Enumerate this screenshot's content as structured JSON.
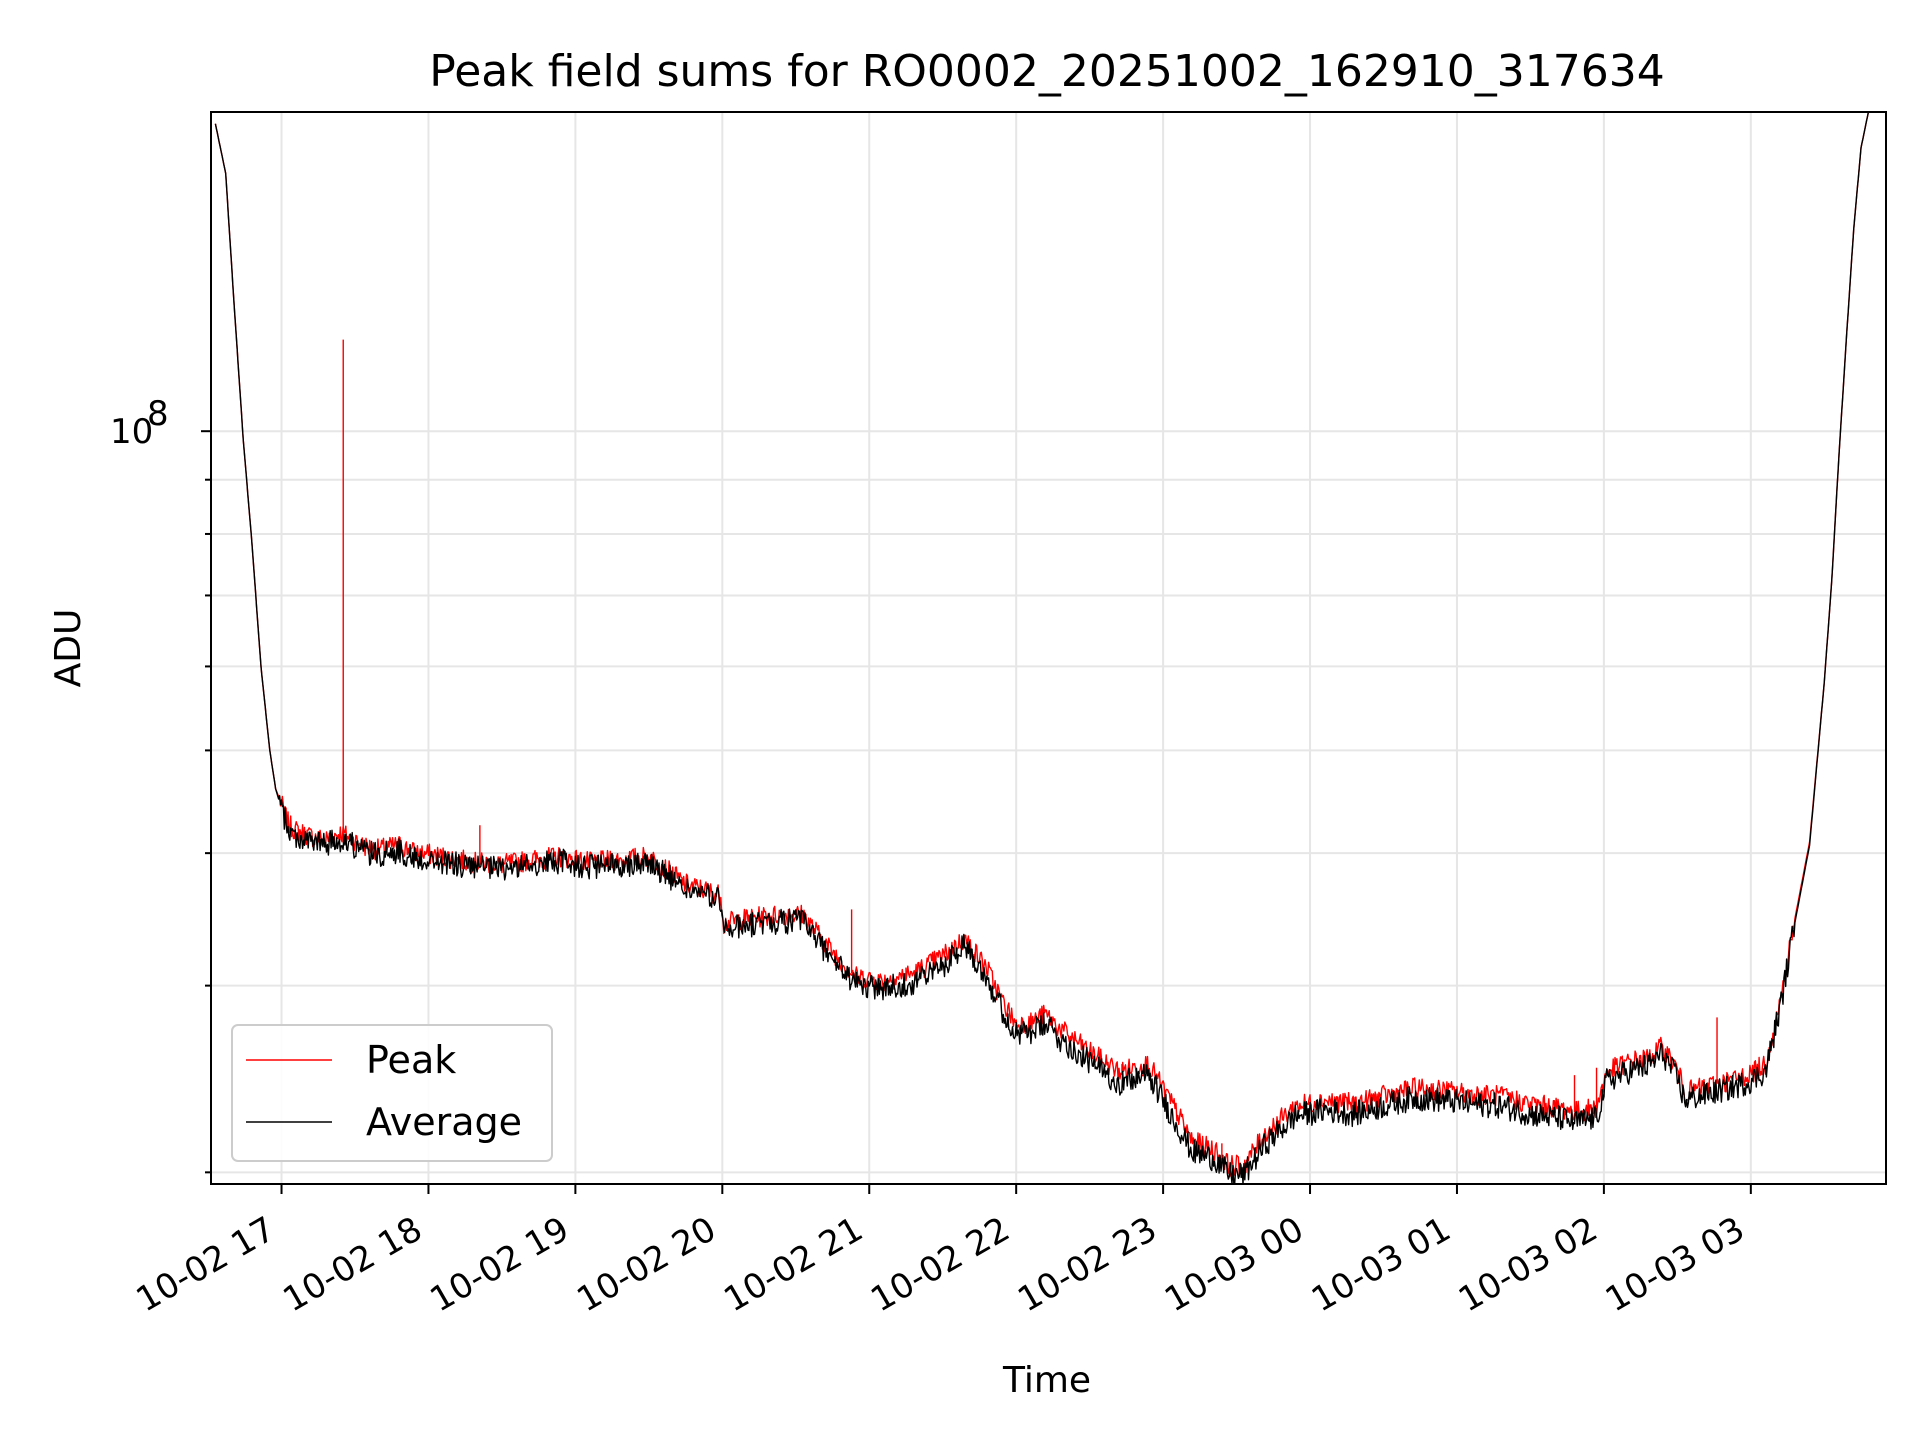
{
  "chart_data": {
    "type": "line",
    "title": "Peak field sums for RO0002_20251002_162910_317634",
    "xlabel": "Time",
    "ylabel": "ADU",
    "yscale": "log",
    "ylim": [
      19500000,
      200000000
    ],
    "y_major_tick_value": 100000000,
    "y_major_tick_label_base": "10",
    "y_major_tick_label_exp": "8",
    "y_minor_ticks": [
      20000000,
      30000000,
      40000000,
      50000000,
      60000000,
      70000000,
      80000000,
      90000000
    ],
    "xlim_hours": [
      16.52,
      27.92
    ],
    "x_ticks": [
      {
        "hour": 17,
        "label": "10-02 17"
      },
      {
        "hour": 18,
        "label": "10-02 18"
      },
      {
        "hour": 19,
        "label": "10-02 19"
      },
      {
        "hour": 20,
        "label": "10-02 20"
      },
      {
        "hour": 21,
        "label": "10-02 21"
      },
      {
        "hour": 22,
        "label": "10-02 22"
      },
      {
        "hour": 23,
        "label": "10-02 23"
      },
      {
        "hour": 24,
        "label": "10-03 00"
      },
      {
        "hour": 25,
        "label": "10-03 01"
      },
      {
        "hour": 26,
        "label": "10-03 02"
      },
      {
        "hour": 27,
        "label": "10-03 03"
      }
    ],
    "grid": true,
    "legend_position": "lower-left",
    "x_hours": [
      16.55,
      16.62,
      16.68,
      16.74,
      16.8,
      16.86,
      16.92,
      16.96,
      17.0,
      17.05,
      17.1,
      17.2,
      17.3,
      17.4,
      17.45,
      17.55,
      17.65,
      17.8,
      17.9,
      18.1,
      18.3,
      18.5,
      18.7,
      18.9,
      19.1,
      19.3,
      19.5,
      19.6,
      19.75,
      19.99,
      20.01,
      20.1,
      20.4,
      20.55,
      20.7,
      20.9,
      21.1,
      21.3,
      21.5,
      21.65,
      21.8,
      21.9,
      22.0,
      22.1,
      22.2,
      22.3,
      22.5,
      22.7,
      22.9,
      23.0,
      23.1,
      23.2,
      23.35,
      23.45,
      23.55,
      23.7,
      23.9,
      24.1,
      24.3,
      24.5,
      24.7,
      24.9,
      25.1,
      25.3,
      25.5,
      25.7,
      25.8,
      25.95,
      26.02,
      26.2,
      26.3,
      26.4,
      26.5,
      26.55,
      26.7,
      26.9,
      27.0,
      27.1,
      27.2,
      27.3,
      27.4,
      27.5,
      27.55,
      27.6,
      27.65,
      27.7,
      27.75,
      27.8,
      27.85,
      27.9
    ],
    "series": [
      {
        "name": "Peak",
        "color": "#ff0000",
        "values": [
          195000000,
          175000000,
          130000000,
          98000000,
          78000000,
          60000000,
          50000000,
          46000000,
          44500000,
          42500000,
          42000000,
          41500000,
          41200000,
          41800000,
          41500000,
          40700000,
          40300000,
          40700000,
          40100000,
          39700000,
          39200000,
          39000000,
          39400000,
          39700000,
          39200000,
          39400000,
          39700000,
          38800000,
          37400000,
          36500000,
          34300000,
          34600000,
          35000000,
          35000000,
          32900000,
          30600000,
          30300000,
          30800000,
          32000000,
          33200000,
          31200000,
          29100000,
          27600000,
          27700000,
          28200000,
          27300000,
          26000000,
          24900000,
          25300000,
          24000000,
          22700000,
          21400000,
          21000000,
          20300000,
          20300000,
          21800000,
          23100000,
          23400000,
          23200000,
          23600000,
          24000000,
          23900000,
          23700000,
          23600000,
          23200000,
          23000000,
          22800000,
          23000000,
          24900000,
          25500000,
          25600000,
          26300000,
          25000000,
          23800000,
          24100000,
          24500000,
          24800000,
          25300000,
          29000000,
          34700000,
          41000000,
          58000000,
          72000000,
          95000000,
          122000000,
          155000000,
          185000000,
          200000000,
          200000000,
          200000000
        ]
      },
      {
        "name": "Average",
        "color": "#000000",
        "values": [
          195000000,
          175000000,
          130000000,
          98000000,
          78000000,
          60000000,
          50000000,
          46000000,
          44000000,
          42000000,
          41400000,
          41000000,
          40800000,
          41200000,
          41000000,
          40200000,
          39800000,
          40200000,
          39600000,
          39200000,
          38800000,
          38600000,
          39000000,
          39300000,
          38800000,
          39000000,
          39300000,
          38300000,
          37000000,
          36100000,
          33800000,
          34100000,
          34500000,
          34500000,
          32400000,
          30100000,
          29800000,
          30200000,
          31300000,
          32900000,
          30600000,
          28500000,
          27000000,
          27100000,
          27600000,
          26700000,
          25400000,
          24300000,
          24700000,
          23400000,
          22100000,
          20900000,
          20600000,
          19900000,
          19900000,
          21300000,
          22600000,
          22900000,
          22700000,
          23100000,
          23500000,
          23400000,
          23200000,
          23100000,
          22700000,
          22500000,
          22300000,
          22500000,
          24400000,
          25000000,
          25200000,
          25900000,
          24500000,
          23400000,
          23700000,
          24100000,
          24400000,
          24900000,
          28600000,
          34400000,
          40700000,
          58000000,
          72000000,
          95000000,
          122000000,
          155000000,
          185000000,
          200000000,
          200000000,
          200000000
        ]
      }
    ],
    "spikes": [
      {
        "series": "Peak",
        "hour": 17.42,
        "value": 122000000
      },
      {
        "series": "Peak",
        "hour": 18.35,
        "value": 42500000
      },
      {
        "series": "Peak",
        "hour": 20.88,
        "value": 35400000
      },
      {
        "series": "Peak",
        "hour": 21.25,
        "value": 31200000
      },
      {
        "series": "Peak",
        "hour": 21.72,
        "value": 31800000
      },
      {
        "series": "Peak",
        "hour": 22.72,
        "value": 25300000
      },
      {
        "series": "Peak",
        "hour": 23.4,
        "value": 21300000
      },
      {
        "series": "Peak",
        "hour": 24.6,
        "value": 23900000
      },
      {
        "series": "Peak",
        "hour": 25.8,
        "value": 24700000
      },
      {
        "series": "Peak",
        "hour": 25.95,
        "value": 25100000
      },
      {
        "series": "Peak",
        "hour": 26.77,
        "value": 28000000
      },
      {
        "series": "Peak",
        "hour": 27.15,
        "value": 26700000
      }
    ]
  }
}
